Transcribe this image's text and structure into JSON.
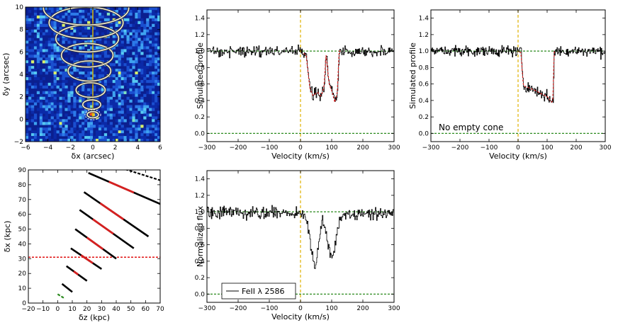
{
  "chart_data": [
    {
      "id": "panel-image",
      "type": "heatmap",
      "xlabel": "δx (arcsec)",
      "ylabel": "δy (arcsec)",
      "xlim": [
        -6,
        6
      ],
      "ylim": [
        -2,
        10
      ],
      "xticks": [
        -6,
        -4,
        -2,
        0,
        2,
        4,
        6
      ],
      "yticks": [
        -2,
        0,
        2,
        4,
        6,
        8,
        10
      ],
      "tick_labels_x": [
        "−6",
        "−4",
        "−2",
        "0",
        "2",
        "4",
        "6"
      ],
      "tick_labels_y": [
        "−2",
        "0",
        "2",
        "4",
        "6",
        "8",
        "10"
      ],
      "ellipses": [
        {
          "cx": 0,
          "cy": 0.4,
          "rx": 0.5,
          "ry": 0.28
        },
        {
          "cx": -0.1,
          "cy": 1.3,
          "rx": 0.8,
          "ry": 0.42
        },
        {
          "cx": -0.2,
          "cy": 2.6,
          "rx": 1.3,
          "ry": 0.65
        },
        {
          "cx": -0.3,
          "cy": 4.3,
          "rx": 1.9,
          "ry": 0.9
        },
        {
          "cx": -0.5,
          "cy": 5.7,
          "rx": 2.3,
          "ry": 1.05
        },
        {
          "cx": -0.5,
          "cy": 7.2,
          "rx": 2.8,
          "ry": 1.2
        },
        {
          "cx": -0.6,
          "cy": 8.6,
          "rx": 3.3,
          "ry": 1.4
        },
        {
          "cx": -0.6,
          "cy": 9.9,
          "rx": 3.8,
          "ry": 1.5
        }
      ],
      "colors": {
        "background": "#0b1f8f",
        "ellipse": "#f4f0d8",
        "axis_line": "#d6b400"
      }
    },
    {
      "id": "panel-profile-1",
      "type": "line",
      "xlabel": "Velocity (km/s)",
      "ylabel": "Simulated profile",
      "xlim": [
        -300,
        300
      ],
      "ylim": [
        -0.1,
        1.5
      ],
      "xticks": [
        -300,
        -200,
        -100,
        0,
        100,
        200,
        300
      ],
      "yticks": [
        0.0,
        0.2,
        0.4,
        0.6,
        0.8,
        1.0,
        1.2,
        1.4
      ],
      "tick_labels_x": [
        "−300",
        "−200",
        "−100",
        "0",
        "100",
        "200",
        "300"
      ],
      "tick_labels_y": [
        "0.0",
        "0.2",
        "0.4",
        "0.6",
        "0.8",
        "1.0",
        "1.2",
        "1.4"
      ],
      "absorption": [
        [
          -300,
          1.0
        ],
        [
          0,
          1.0
        ],
        [
          18,
          0.95
        ],
        [
          30,
          0.55
        ],
        [
          40,
          0.46
        ],
        [
          55,
          0.5
        ],
        [
          65,
          0.45
        ],
        [
          75,
          0.55
        ],
        [
          82,
          0.95
        ],
        [
          92,
          0.6
        ],
        [
          100,
          0.52
        ],
        [
          110,
          0.38
        ],
        [
          118,
          0.5
        ],
        [
          124,
          1.0
        ],
        [
          300,
          1.0
        ]
      ],
      "fit_range": [
        10,
        130
      ],
      "continuum": 1.0,
      "zero_level": 0.0,
      "noise": 0.05,
      "annotation": "",
      "colors": {
        "data": "#000000",
        "fit": "#d62020",
        "guide": "#2b8a1e",
        "vline": "#e0b000"
      }
    },
    {
      "id": "panel-profile-2",
      "type": "line",
      "xlabel": "Velocity (km/s)",
      "ylabel": "Simulated profile",
      "xlim": [
        -300,
        300
      ],
      "ylim": [
        -0.1,
        1.5
      ],
      "xticks": [
        -300,
        -200,
        -100,
        0,
        100,
        200,
        300
      ],
      "yticks": [
        0.0,
        0.2,
        0.4,
        0.6,
        0.8,
        1.0,
        1.2,
        1.4
      ],
      "tick_labels_x": [
        "−300",
        "−200",
        "−100",
        "0",
        "100",
        "200",
        "300"
      ],
      "tick_labels_y": [
        "0.0",
        "0.2",
        "0.4",
        "0.6",
        "0.8",
        "1.0",
        "1.2",
        "1.4"
      ],
      "absorption": [
        [
          -300,
          1.0
        ],
        [
          0,
          1.0
        ],
        [
          10,
          0.98
        ],
        [
          18,
          0.58
        ],
        [
          40,
          0.55
        ],
        [
          60,
          0.52
        ],
        [
          80,
          0.48
        ],
        [
          100,
          0.45
        ],
        [
          115,
          0.38
        ],
        [
          120,
          0.4
        ],
        [
          124,
          1.0
        ],
        [
          300,
          1.0
        ]
      ],
      "fit_range": [
        5,
        125
      ],
      "continuum": 1.0,
      "zero_level": 0.0,
      "noise": 0.05,
      "annotation": "No empty cone",
      "colors": {
        "data": "#000000",
        "fit": "#d62020",
        "guide": "#2b8a1e",
        "vline": "#e0b000"
      }
    },
    {
      "id": "panel-geometry",
      "type": "line",
      "xlabel": "δz (kpc)",
      "ylabel": "δx (kpc)",
      "xlim": [
        -20,
        70
      ],
      "ylim": [
        0,
        90
      ],
      "xticks": [
        -20,
        -10,
        0,
        10,
        20,
        30,
        40,
        50,
        60,
        70
      ],
      "yticks": [
        0,
        10,
        20,
        30,
        40,
        50,
        60,
        70,
        80,
        90
      ],
      "tick_labels_x": [
        "−20",
        "−10",
        "0",
        "10",
        "20",
        "30",
        "40",
        "50",
        "60",
        "70"
      ],
      "tick_labels_y": [
        "0",
        "10",
        "20",
        "30",
        "40",
        "50",
        "60",
        "70",
        "80",
        "90"
      ],
      "segments": [
        {
          "x1": 0,
          "y1": 6,
          "x2": 5,
          "y2": 3,
          "color": "#2b8a1e",
          "style": "dashed"
        },
        {
          "x1": 3,
          "y1": 13,
          "x2": 10,
          "y2": 7.5
        },
        {
          "x1": 6,
          "y1": 25,
          "x2": 20,
          "y2": 15,
          "red": [
            11,
            14
          ]
        },
        {
          "x1": 9,
          "y1": 37,
          "x2": 30,
          "y2": 23,
          "red": [
            16,
            24
          ]
        },
        {
          "x1": 12,
          "y1": 50,
          "x2": 40,
          "y2": 30,
          "red": [
            20,
            31
          ]
        },
        {
          "x1": 15,
          "y1": 63,
          "x2": 52,
          "y2": 37,
          "red": [
            24,
            38
          ]
        },
        {
          "x1": 18,
          "y1": 75,
          "x2": 62,
          "y2": 45,
          "red": [
            29,
            45
          ]
        },
        {
          "x1": 21,
          "y1": 88,
          "x2": 70,
          "y2": 67,
          "red": [
            35,
            52
          ]
        },
        {
          "x1": 38,
          "y1": 93,
          "x2": 70,
          "y2": 83,
          "style": "dashed"
        }
      ],
      "hline": 31,
      "colors": {
        "line": "#000000",
        "highlight": "#d62020",
        "hline": "#e01010"
      }
    },
    {
      "id": "panel-observed",
      "type": "line",
      "xlabel": "Velocity (km/s)",
      "ylabel": "Normalized flux",
      "xlim": [
        -300,
        300
      ],
      "ylim": [
        -0.1,
        1.5
      ],
      "xticks": [
        -300,
        -200,
        -100,
        0,
        100,
        200,
        300
      ],
      "yticks": [
        0.0,
        0.2,
        0.4,
        0.6,
        0.8,
        1.0,
        1.2,
        1.4
      ],
      "tick_labels_x": [
        "−300",
        "−200",
        "−100",
        "0",
        "100",
        "200",
        "300"
      ],
      "tick_labels_y": [
        "0.0",
        "0.2",
        "0.4",
        "0.6",
        "0.8",
        "1.0",
        "1.2",
        "1.4"
      ],
      "absorption": [
        [
          -300,
          1.0
        ],
        [
          0,
          0.98
        ],
        [
          20,
          0.9
        ],
        [
          35,
          0.5
        ],
        [
          45,
          0.28
        ],
        [
          55,
          0.55
        ],
        [
          70,
          0.9
        ],
        [
          85,
          0.7
        ],
        [
          100,
          0.38
        ],
        [
          110,
          0.6
        ],
        [
          125,
          0.95
        ],
        [
          300,
          1.0
        ]
      ],
      "continuum": 1.0,
      "zero_level": 0.0,
      "noise": 0.06,
      "legend": "FeII λ 2586",
      "legend_loc": "lower-left",
      "colors": {
        "data": "#000000",
        "guide": "#2b8a1e",
        "vline": "#e0b000"
      }
    }
  ]
}
